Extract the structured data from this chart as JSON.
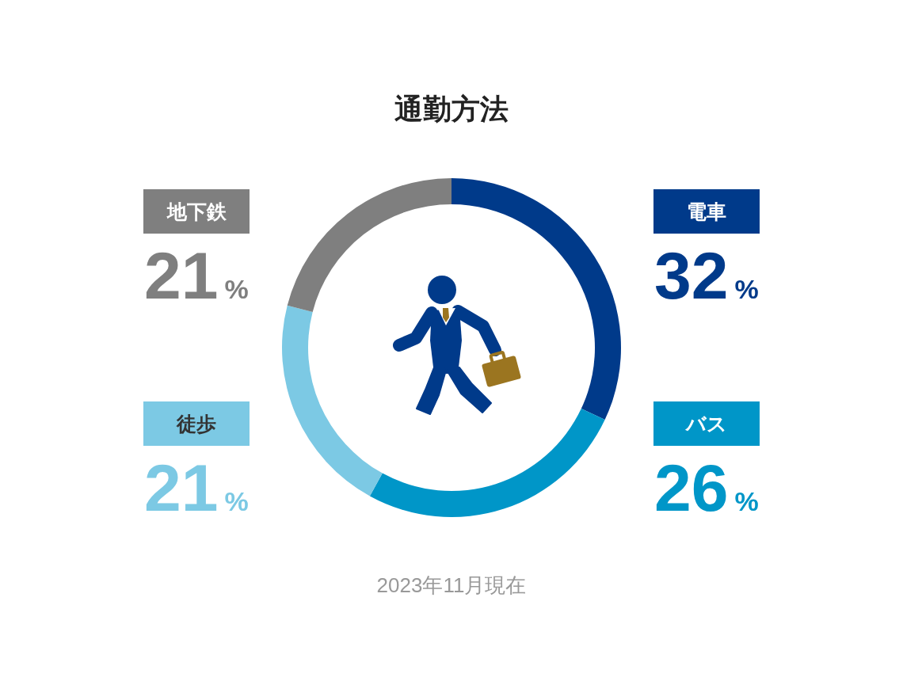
{
  "chart_data": {
    "type": "donut",
    "title": "通勤方法",
    "categories": [
      "電車",
      "バス",
      "徒歩",
      "地下鉄"
    ],
    "values": [
      32,
      26,
      21,
      21
    ],
    "colors": [
      "#003a8a",
      "#0096c8",
      "#7cc9e4",
      "#7f7f7f"
    ],
    "value_labels": [
      "32%",
      "26%",
      "21%",
      "21%"
    ],
    "annotations": [
      "2023年11月現在"
    ]
  }
}
